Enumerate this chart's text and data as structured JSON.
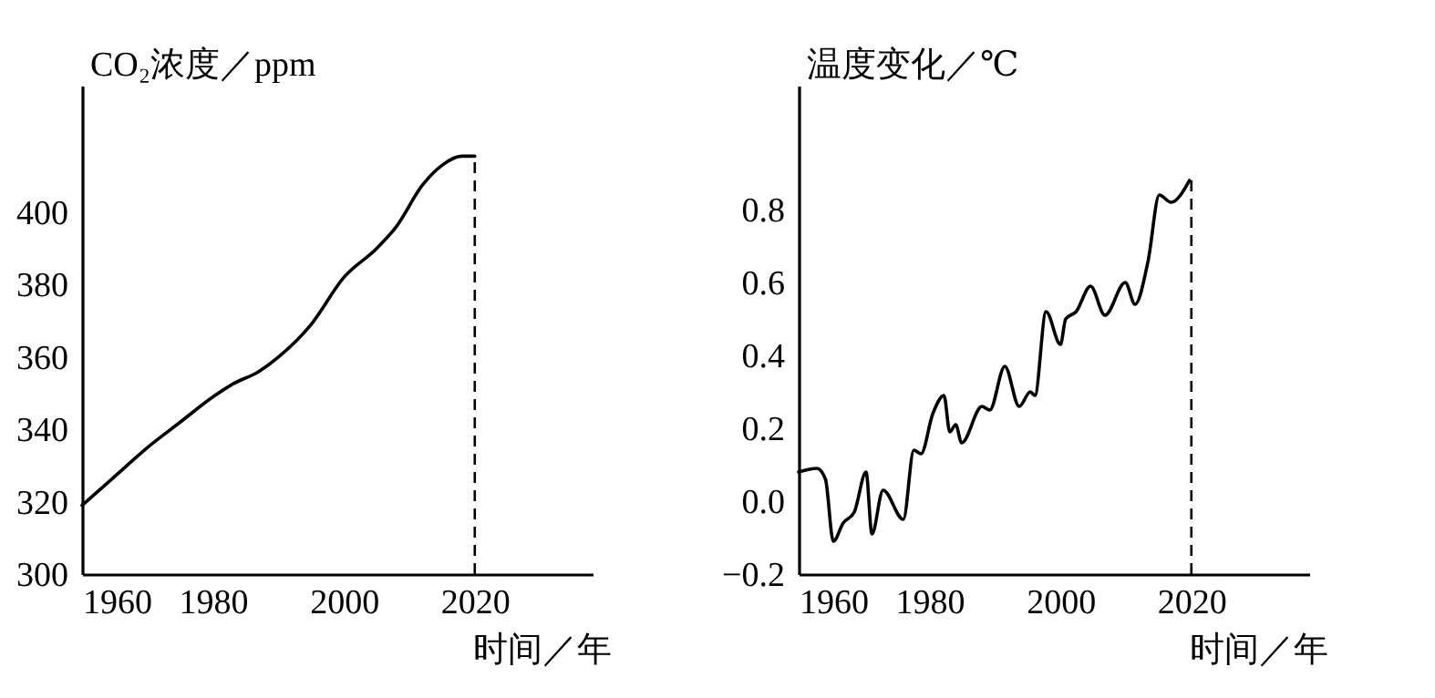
{
  "chart_data": [
    {
      "type": "line",
      "ylabel": "CO₂浓度／ppm",
      "xlabel": "时间／年",
      "xlim": [
        1960,
        2038
      ],
      "xticks": [
        1960,
        1980,
        2000,
        2020
      ],
      "ylim": [
        300,
        435
      ],
      "yticks": [
        300,
        320,
        340,
        360,
        380,
        400
      ],
      "series": [
        {
          "color": "#000000",
          "x": [
            1960,
            1965,
            1970,
            1975,
            1980,
            1983,
            1987,
            1990,
            1995,
            2000,
            2005,
            2008,
            2012,
            2015,
            2018,
            2020
          ],
          "values": [
            319,
            327,
            335,
            342,
            349,
            352.5,
            356,
            360,
            369,
            382,
            390,
            396,
            407.5,
            413,
            415.5,
            415.5
          ]
        }
      ],
      "ref_lines": [
        {
          "axis": "x",
          "value": 2020,
          "line_style": "dashed"
        }
      ]
    },
    {
      "type": "line",
      "ylabel": "温度变化／℃",
      "xlabel": "时间／年",
      "xlim": [
        1960,
        2038
      ],
      "xticks": [
        1960,
        1980,
        2000,
        2020
      ],
      "ylim": [
        -0.2,
        1.14
      ],
      "yticks": [
        {
          "value": -0.2,
          "label": "−0.2"
        },
        {
          "value": 0,
          "label": "0.0"
        },
        0.2,
        0.4,
        0.6,
        0.8
      ],
      "series": [
        {
          "color": "#000000",
          "x": [
            1960,
            1962.8,
            1964.1,
            1965.3,
            1966.8,
            1968.5,
            1970.3,
            1971.2,
            1972.9,
            1976,
            1977.6,
            1978.7,
            1980.5,
            1982.2,
            1983.1,
            1984,
            1984.9,
            1988,
            1989.2,
            1991.5,
            1993.7,
            1995.4,
            1996.1,
            1997.8,
            2000,
            2000.8,
            2002.4,
            2004.6,
            2006.8,
            2009.9,
            2011.4,
            2013.4,
            2015.1,
            2016.9,
            2019.7
          ],
          "values": [
            0.08,
            0.09,
            0.06,
            -0.11,
            -0.06,
            -0.03,
            0.08,
            -0.09,
            0.03,
            -0.05,
            0.14,
            0.13,
            0.24,
            0.29,
            0.19,
            0.21,
            0.16,
            0.26,
            0.25,
            0.37,
            0.26,
            0.3,
            0.29,
            0.52,
            0.43,
            0.5,
            0.52,
            0.59,
            0.51,
            0.6,
            0.54,
            0.66,
            0.84,
            0.82,
            0.88
          ]
        }
      ],
      "ref_lines": [
        {
          "axis": "x",
          "value": 2020,
          "line_style": "dashed"
        }
      ]
    }
  ]
}
